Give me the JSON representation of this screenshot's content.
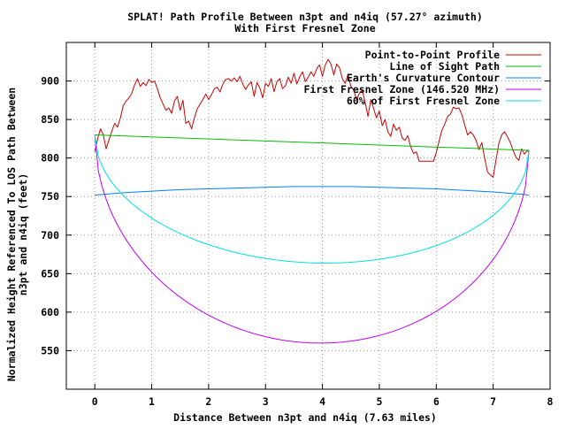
{
  "chart_data": {
    "type": "line",
    "title": "SPLAT! Path Profile Between n3pt and n4iq (57.27° azimuth)",
    "subtitle": "With First Fresnel Zone",
    "xlabel": "Distance Between n3pt and n4iq (7.63 miles)",
    "ylabel_line1": "Normalized Height Referenced To LOS Path Between",
    "ylabel_line2": "n3pt and n4iq (feet)",
    "xlim": [
      -0.5,
      8
    ],
    "ylim": [
      500,
      950
    ],
    "xticks": [
      0,
      1,
      2,
      3,
      4,
      5,
      6,
      7,
      8
    ],
    "yticks": [
      550,
      600,
      650,
      700,
      750,
      800,
      850,
      900
    ],
    "grid": true,
    "legend_position": "top-right",
    "colors": {
      "profile": "#ff0000",
      "los": "#00c000",
      "curvature": "#0080ff",
      "fresnel": "#c000ff",
      "fresnel60": "#00e0e0"
    },
    "series": [
      {
        "key": "profile",
        "name": "Point-to-Point Profile",
        "color": "#cc0000",
        "x": [
          0.0,
          0.05,
          0.1,
          0.15,
          0.2,
          0.25,
          0.3,
          0.35,
          0.4,
          0.45,
          0.5,
          0.55,
          0.6,
          0.65,
          0.7,
          0.75,
          0.8,
          0.85,
          0.9,
          0.95,
          1.0,
          1.05,
          1.1,
          1.15,
          1.2,
          1.25,
          1.3,
          1.35,
          1.4,
          1.45,
          1.5,
          1.55,
          1.6,
          1.65,
          1.7,
          1.75,
          1.8,
          1.85,
          1.9,
          1.95,
          2.0,
          2.05,
          2.1,
          2.15,
          2.2,
          2.25,
          2.3,
          2.35,
          2.4,
          2.45,
          2.5,
          2.55,
          2.6,
          2.65,
          2.7,
          2.75,
          2.8,
          2.85,
          2.9,
          2.95,
          3.0,
          3.05,
          3.1,
          3.15,
          3.2,
          3.25,
          3.3,
          3.35,
          3.4,
          3.45,
          3.5,
          3.55,
          3.6,
          3.65,
          3.7,
          3.75,
          3.8,
          3.85,
          3.9,
          3.95,
          4.0,
          4.05,
          4.1,
          4.15,
          4.2,
          4.25,
          4.3,
          4.35,
          4.4,
          4.45,
          4.5,
          4.55,
          4.6,
          4.65,
          4.7,
          4.75,
          4.8,
          4.85,
          4.9,
          4.95,
          5.0,
          5.05,
          5.1,
          5.15,
          5.2,
          5.25,
          5.3,
          5.35,
          5.4,
          5.45,
          5.5,
          5.55,
          5.6,
          5.65,
          5.7,
          5.75,
          5.8,
          5.85,
          5.9,
          5.95,
          6.0,
          6.05,
          6.1,
          6.15,
          6.2,
          6.25,
          6.3,
          6.35,
          6.4,
          6.45,
          6.5,
          6.55,
          6.6,
          6.65,
          6.7,
          6.75,
          6.8,
          6.85,
          6.9,
          6.95,
          7.0,
          7.05,
          7.1,
          7.15,
          7.2,
          7.25,
          7.3,
          7.35,
          7.4,
          7.45,
          7.5,
          7.55,
          7.6,
          7.63
        ],
        "y": [
          808,
          825,
          838,
          830,
          812,
          824,
          835,
          845,
          840,
          852,
          868,
          874,
          878,
          884,
          895,
          903,
          893,
          898,
          894,
          902,
          898,
          900,
          890,
          878,
          870,
          862,
          865,
          858,
          874,
          880,
          862,
          875,
          845,
          848,
          838,
          852,
          864,
          870,
          876,
          883,
          876,
          882,
          890,
          892,
          886,
          896,
          902,
          903,
          900,
          904,
          899,
          906,
          896,
          889,
          895,
          899,
          880,
          898,
          891,
          878,
          897,
          893,
          903,
          886,
          899,
          903,
          890,
          894,
          905,
          897,
          910,
          896,
          905,
          912,
          899,
          905,
          912,
          906,
          916,
          921,
          906,
          921,
          928,
          922,
          908,
          922,
          917,
          903,
          897,
          908,
          893,
          888,
          876,
          884,
          888,
          872,
          854,
          876,
          864,
          852,
          861,
          842,
          850,
          834,
          828,
          844,
          836,
          840,
          826,
          823,
          829,
          815,
          806,
          808,
          796,
          796,
          796,
          796,
          796,
          796,
          807,
          822,
          836,
          844,
          854,
          857,
          866,
          864,
          865,
          856,
          843,
          830,
          834,
          830,
          823,
          811,
          820,
          800,
          782,
          778,
          775,
          798,
          819,
          830,
          834,
          828,
          820,
          810,
          801,
          797,
          812,
          805,
          810,
          807
        ],
        "stroke": 1
      },
      {
        "key": "los",
        "name": "Line of Sight Path",
        "color": "#00c000",
        "x": [
          0.0,
          7.63
        ],
        "y": [
          830,
          810
        ],
        "stroke": 1
      },
      {
        "key": "curvature",
        "name": "Earth's Curvature Contour",
        "color": "#0080ff",
        "x": [
          0.0,
          0.5,
          1.0,
          1.5,
          2.0,
          2.5,
          3.0,
          3.5,
          3.8,
          4.0,
          4.5,
          5.0,
          5.5,
          6.0,
          6.5,
          7.0,
          7.5,
          7.63
        ],
        "y": [
          752,
          755,
          757,
          759,
          760,
          761,
          762,
          763,
          763,
          763,
          763,
          762,
          761,
          760,
          758,
          756,
          753,
          752
        ],
        "stroke": 1
      },
      {
        "key": "fresnel",
        "name": "First Fresnel Zone (146.520 MHz)",
        "color": "#c000ff",
        "shape": "fresnel",
        "x_start": 0.0,
        "x_end": 7.63,
        "y_start": 830,
        "y_end": 810,
        "clearance_max": 260,
        "stroke": 1
      },
      {
        "key": "fresnel60",
        "name": "60% of First Fresnel Zone",
        "color": "#00e0e0",
        "shape": "fresnel",
        "x_start": 0.0,
        "x_end": 7.63,
        "y_start": 830,
        "y_end": 810,
        "clearance_max": 156,
        "stroke": 1
      }
    ]
  }
}
